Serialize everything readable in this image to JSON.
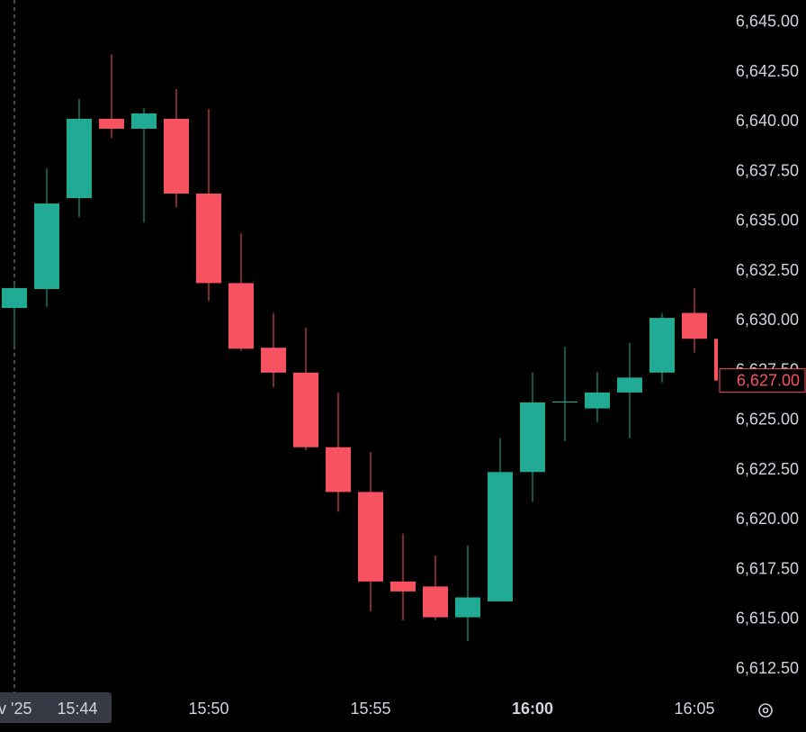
{
  "chart_data": {
    "type": "candlestick",
    "categories": [
      null,
      null,
      null,
      null,
      null,
      null,
      "15:50",
      null,
      null,
      null,
      null,
      "15:55",
      null,
      null,
      null,
      null,
      "16:00",
      null,
      null,
      null,
      null,
      "16:05",
      null
    ],
    "open": [
      6630.65,
      6631.6,
      6636.17,
      6640.16,
      6639.66,
      6640.16,
      6636.4,
      6631.9,
      6628.65,
      6627.4,
      6623.65,
      6621.4,
      6616.9,
      6616.65,
      6615.1,
      6615.9,
      6622.4,
      6625.9,
      6625.6,
      6626.4,
      6627.4,
      6630.4,
      6629.1
    ],
    "high": [
      6631.8,
      6637.67,
      6641.15,
      6643.4,
      6640.7,
      6641.65,
      6640.65,
      6634.4,
      6630.4,
      6629.65,
      6626.4,
      6623.4,
      6619.3,
      6618.2,
      6618.7,
      6624.1,
      6627.4,
      6628.7,
      6627.45,
      6628.9,
      6630.4,
      6631.65,
      6629.2
    ],
    "low": [
      6628.7,
      6630.7,
      6635.2,
      6639.2,
      6634.95,
      6635.7,
      6631.0,
      6628.5,
      6626.65,
      6623.5,
      6620.4,
      6615.4,
      6614.95,
      6614.95,
      6613.9,
      6615.9,
      6620.9,
      6623.95,
      6624.9,
      6624.1,
      6626.9,
      6628.4,
      6627.0
    ],
    "close": [
      6631.65,
      6635.9,
      6640.16,
      6639.66,
      6640.43,
      6636.4,
      6631.9,
      6628.6,
      6627.4,
      6623.65,
      6621.4,
      6616.9,
      6616.4,
      6615.1,
      6616.1,
      6622.4,
      6625.9,
      6625.95,
      6626.4,
      6627.15,
      6630.15,
      6629.1,
      6627.0
    ],
    "up_color": "#22ab94",
    "down_color": "#f7525f",
    "ylim": [
      6611.28,
      6646.13
    ],
    "yticks": [
      {
        "value": 6612.5,
        "label": "6,612.50"
      },
      {
        "value": 6615,
        "label": "6,615.00"
      },
      {
        "value": 6617.5,
        "label": "6,617.50"
      },
      {
        "value": 6620,
        "label": "6,620.00"
      },
      {
        "value": 6622.5,
        "label": "6,622.50"
      },
      {
        "value": 6625,
        "label": "6,625.00"
      },
      {
        "value": 6627.5,
        "label": "6,627.50"
      },
      {
        "value": 6630,
        "label": "6,630.00"
      },
      {
        "value": 6632.5,
        "label": "6,632.50"
      },
      {
        "value": 6635,
        "label": "6,635.00"
      },
      {
        "value": 6637.5,
        "label": "6,637.50"
      },
      {
        "value": 6640,
        "label": "6,640.00"
      },
      {
        "value": 6642.5,
        "label": "6,642.50"
      },
      {
        "value": 6645,
        "label": "6,645.00"
      }
    ],
    "last_price": {
      "value": 6627,
      "label": "6,627.00"
    },
    "crosshair_label": [
      "v '25",
      "15:44"
    ]
  }
}
